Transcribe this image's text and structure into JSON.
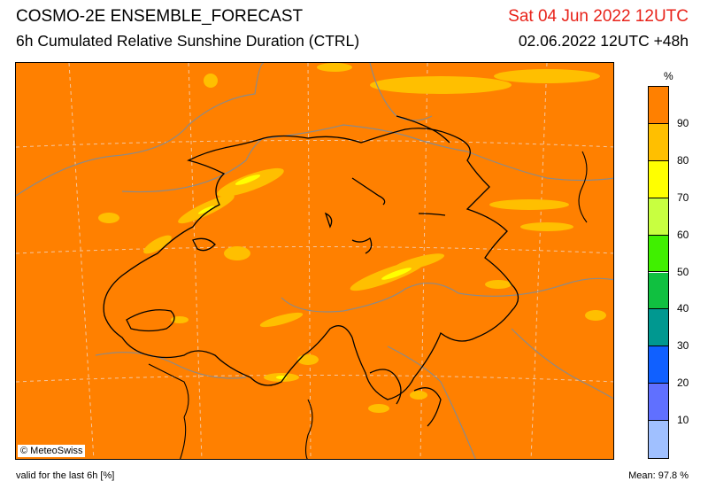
{
  "header": {
    "title": "COSMO-2E ENSEMBLE_FORECAST",
    "subtitle": "6h Cumulated Relative Sunshine Duration (CTRL)",
    "valid_date": "Sat 04 Jun 2022 12UTC",
    "run_info": "02.06.2022 12UTC +48h"
  },
  "map": {
    "credit": "© MeteoSwiss",
    "background_color": "#ff8000"
  },
  "legend": {
    "unit": "%",
    "classes": [
      {
        "label": "90",
        "color": "#ff8000"
      },
      {
        "label": "80",
        "color": "#ffbf00"
      },
      {
        "label": "70",
        "color": "#ffff00"
      },
      {
        "label": "60",
        "color": "#c8ff40"
      },
      {
        "label": "50",
        "color": "#40f000"
      },
      {
        "label": "40",
        "color": "#10c040"
      },
      {
        "label": "30",
        "color": "#009890"
      },
      {
        "label": "20",
        "color": "#1060ff"
      },
      {
        "label": "10",
        "color": "#6070ff"
      },
      {
        "label": "",
        "color": "#a0c0ff"
      }
    ]
  },
  "footer": {
    "validity": "valid for the last 6h [%]",
    "mean": "Mean:  97.8 %"
  }
}
